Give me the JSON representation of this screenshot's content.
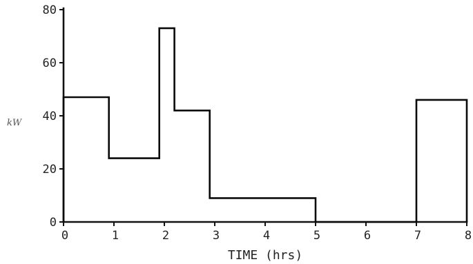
{
  "chart_data": {
    "type": "line",
    "style": "step",
    "title": "",
    "xlabel": "TIME (hrs)",
    "ylabel": "kW",
    "xlim": [
      0,
      8
    ],
    "ylim": [
      0,
      80
    ],
    "x_ticks": [
      "0",
      "1",
      "2",
      "3",
      "4",
      "5",
      "6",
      "7",
      "8"
    ],
    "y_ticks": [
      "0",
      "20",
      "40",
      "60",
      "80"
    ],
    "grid": false,
    "legend": "none",
    "series": [
      {
        "x": [
          0,
          0,
          0.9,
          0.9,
          1.9,
          1.9,
          2.2,
          2.2,
          2.9,
          2.9,
          5,
          5,
          7,
          7,
          8,
          8
        ],
        "y": [
          0,
          47,
          47,
          24,
          24,
          73,
          73,
          42,
          42,
          9,
          9,
          0,
          0,
          46,
          46,
          0
        ]
      }
    ]
  }
}
